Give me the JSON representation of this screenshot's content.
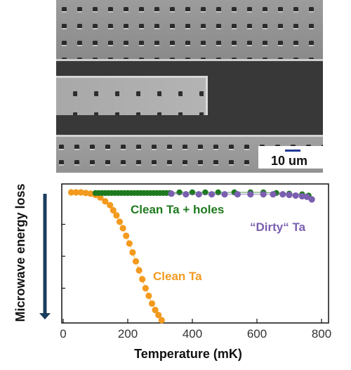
{
  "sem_image": {
    "scale_label": "10 um",
    "scale_color": "#1f3a93"
  },
  "chart_data": {
    "type": "scatter",
    "xlabel": "Temperature (mK)",
    "ylabel": "Microwave energy loss",
    "xlim": [
      0,
      800
    ],
    "xticks": [
      0,
      200,
      400,
      600,
      800
    ],
    "ylim": [
      0,
      1
    ],
    "yaxis_arrow": "down",
    "grid": false,
    "series": [
      {
        "name": "Clean Ta",
        "color": "#f39a1e",
        "x": [
          25,
          40,
          55,
          70,
          85,
          100,
          115,
          130,
          145,
          155,
          165,
          175,
          185,
          195,
          205,
          215,
          225,
          235,
          245,
          255,
          265,
          275,
          285,
          295,
          305
        ],
        "y": [
          1.0,
          1.0,
          1.0,
          0.995,
          0.99,
          0.98,
          0.96,
          0.93,
          0.9,
          0.86,
          0.82,
          0.77,
          0.72,
          0.66,
          0.6,
          0.53,
          0.46,
          0.39,
          0.32,
          0.25,
          0.19,
          0.13,
          0.08,
          0.04,
          0.0
        ]
      },
      {
        "name": "Clean Ta + holes",
        "color": "#1e7a1e",
        "x": [
          100,
          110,
          120,
          130,
          140,
          150,
          160,
          170,
          180,
          190,
          200,
          210,
          220,
          230,
          240,
          250,
          260,
          270,
          280,
          290,
          300,
          310,
          320,
          330,
          360,
          400,
          440,
          480,
          530,
          580,
          620,
          660,
          700,
          740,
          760
        ],
        "y": [
          0.995,
          0.995,
          0.995,
          0.995,
          0.995,
          0.995,
          0.995,
          0.995,
          0.995,
          0.995,
          0.995,
          0.995,
          0.995,
          0.995,
          0.995,
          0.995,
          0.995,
          0.995,
          0.995,
          0.995,
          0.995,
          0.995,
          0.995,
          0.995,
          1.0,
          1.0,
          1.0,
          1.0,
          1.0,
          1.0,
          1.0,
          0.995,
          0.99,
          0.985,
          0.975
        ]
      },
      {
        "name": "“Dirty“ Ta",
        "color": "#7a5fb0",
        "x": [
          335,
          380,
          420,
          460,
          500,
          540,
          580,
          620,
          650,
          680,
          700,
          720,
          740,
          755,
          770
        ],
        "y": [
          0.99,
          0.985,
          0.985,
          0.985,
          0.985,
          0.985,
          0.985,
          0.985,
          0.985,
          0.985,
          0.98,
          0.975,
          0.97,
          0.965,
          0.945
        ]
      }
    ],
    "annotations": [
      {
        "text": "Clean Ta + holes",
        "color": "#1e7a1e"
      },
      {
        "text": "“Dirty“ Ta",
        "color": "#7a5fb0"
      },
      {
        "text": "Clean Ta",
        "color": "#f39a1e"
      }
    ]
  }
}
